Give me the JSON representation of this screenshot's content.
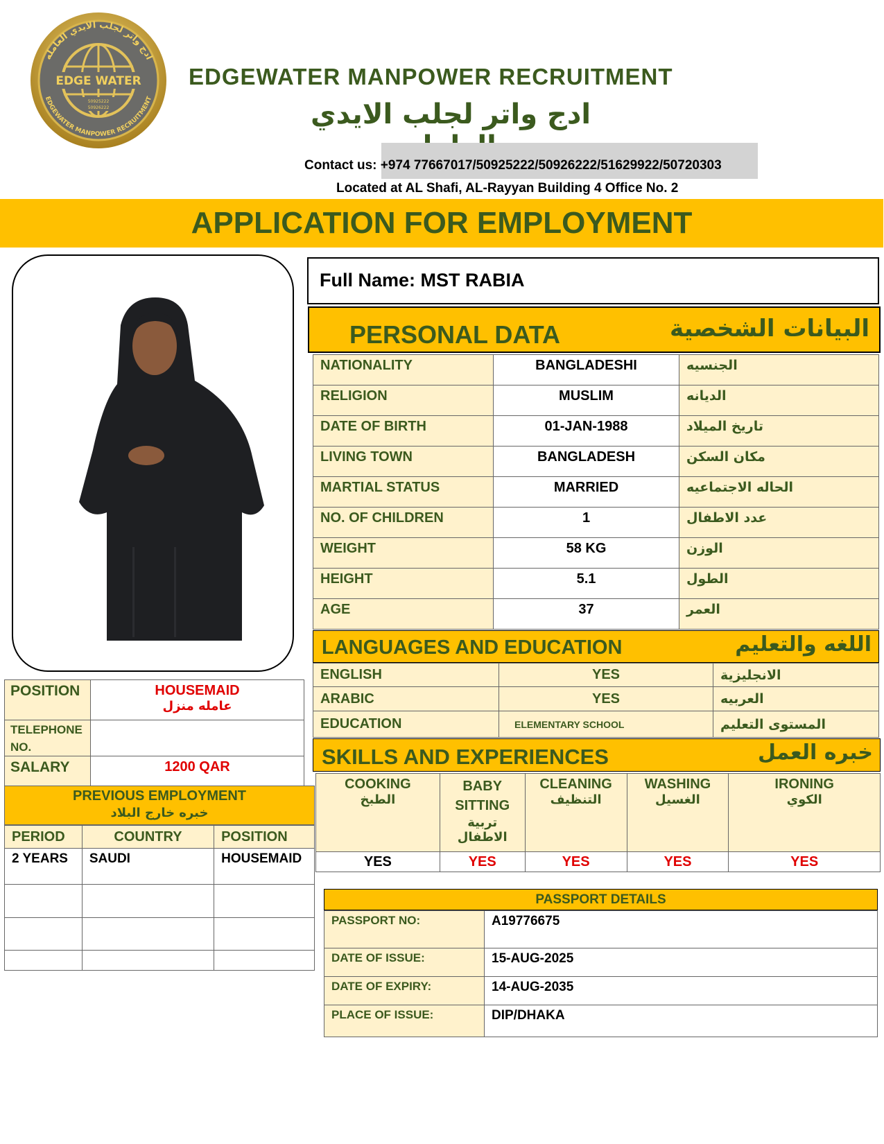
{
  "header": {
    "logo": {
      "text_top": "ادج واتر لجلب الايدي العامله",
      "text_center": "EDGE WATER",
      "text_bottom": "EDGEWATER MANPOWER RECRUITMENT",
      "phones": [
        "50925222",
        "50926222"
      ]
    },
    "company_name": "EDGEWATER MANPOWER RECRUITMENT",
    "company_name_ar": "ادج واتر لجلب الايدي العامله",
    "contact_label": "Contact us:",
    "contact_numbers": "+974 77667017/50925222/50926222/51629922/50720303",
    "location": "Located at AL Shafi, AL-Rayyan Building 4 Office No. 2"
  },
  "title": "APPLICATION FOR EMPLOYMENT",
  "full_name": "Full Name: MST RABIA",
  "personal": {
    "title": "PERSONAL DATA",
    "title_ar": "البيانات الشخصية",
    "rows": [
      {
        "label": "NATIONALITY",
        "value": "BANGLADESHI",
        "label_ar": "الجنسيه"
      },
      {
        "label": "RELIGION",
        "value": "MUSLIM",
        "label_ar": "الديانه"
      },
      {
        "label": "DATE OF BIRTH",
        "value": "01-JAN-1988",
        "label_ar": "تاريخ الميلاد"
      },
      {
        "label": "LIVING TOWN",
        "value": "BANGLADESH",
        "label_ar": "مكان السكن"
      },
      {
        "label": "MARTIAL STATUS",
        "value": "MARRIED",
        "label_ar": "الحاله الاجتماعيه"
      },
      {
        "label": "NO. OF CHILDREN",
        "value": "1",
        "label_ar": "عدد الاطفال"
      },
      {
        "label": "WEIGHT",
        "value": "58 KG",
        "label_ar": "الوزن"
      },
      {
        "label": "HEIGHT",
        "value": "5.1",
        "label_ar": "الطول"
      },
      {
        "label": "AGE",
        "value": "37",
        "label_ar": "العمر"
      }
    ]
  },
  "languages": {
    "title": "LANGUAGES AND EDUCATION",
    "title_ar": "اللغه والتعليم",
    "rows": [
      {
        "label": "ENGLISH",
        "value": "YES",
        "label_ar": "الانجليزية"
      },
      {
        "label": "ARABIC",
        "value": "YES",
        "label_ar": "العربيه"
      },
      {
        "label": "EDUCATION",
        "value": "ELEMENTARY SCHOOL",
        "label_ar": "المستوى التعليم"
      }
    ]
  },
  "skills": {
    "title": "SKILLS AND EXPERIENCES",
    "title_ar": "خبره العمل",
    "items": [
      {
        "label": "COOKING",
        "label_ar": "الطبخ",
        "value": "YES",
        "value_color": "#000000"
      },
      {
        "label": "BABY SITTING",
        "label_ar": "تربية الاطفال",
        "value": "YES",
        "value_color": "#e00000"
      },
      {
        "label": "CLEANING",
        "label_ar": "التنظيف",
        "value": "YES",
        "value_color": "#e00000"
      },
      {
        "label": "WASHING",
        "label_ar": "الغسيل",
        "value": "YES",
        "value_color": "#e00000"
      },
      {
        "label": "IRONING",
        "label_ar": "الكوي",
        "value": "YES",
        "value_color": "#e00000"
      }
    ]
  },
  "job": {
    "position_label": "POSITION",
    "position_value": "HOUSEMAID",
    "position_value_ar": "عامله منزل",
    "telephone_label": "TELEPHONE NO.",
    "telephone_value": "",
    "salary_label": "SALARY",
    "salary_value": "1200 QAR"
  },
  "previous_employment": {
    "title": "PREVIOUS EMPLOYMENT",
    "title_ar": "خبره خارج البلاد",
    "columns": [
      "PERIOD",
      "COUNTRY",
      "POSITION"
    ],
    "rows": [
      [
        "2 YEARS",
        "SAUDI",
        "HOUSEMAID"
      ],
      [
        "",
        "",
        ""
      ],
      [
        "",
        "",
        ""
      ],
      [
        "",
        "",
        ""
      ]
    ]
  },
  "passport": {
    "title": "PASSPORT DETAILS",
    "rows": [
      {
        "label": "PASSPORT NO:",
        "value": "A19776675"
      },
      {
        "label": "DATE OF ISSUE:",
        "value": "15-AUG-2025"
      },
      {
        "label": "DATE OF EXPIRY:",
        "value": "14-AUG-2035"
      },
      {
        "label": "PLACE OF ISSUE:",
        "value": "DIP/DHAKA"
      }
    ]
  },
  "colors": {
    "accent": "#ffc000",
    "label_bg": "#fff2cc",
    "text_green": "#3b5a1e",
    "highlight_red": "#e00000"
  }
}
